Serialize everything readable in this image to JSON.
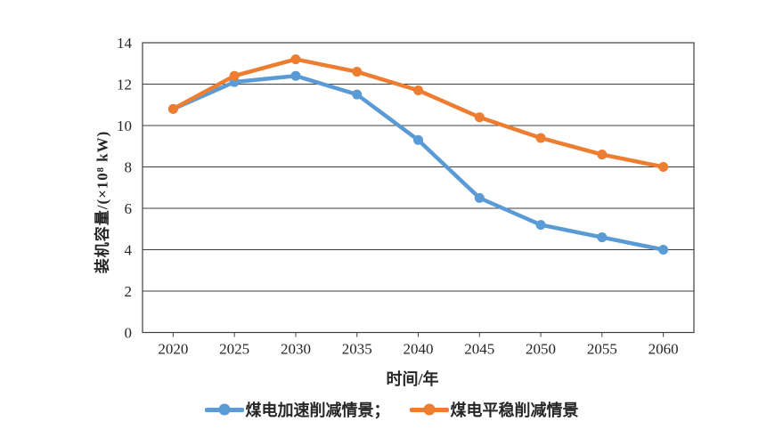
{
  "chart_data": {
    "type": "line",
    "title": "",
    "categories": [
      "2020",
      "2025",
      "2030",
      "2035",
      "2040",
      "2045",
      "2050",
      "2055",
      "2060"
    ],
    "series": [
      {
        "name": "煤电加速削减情景",
        "legend_label": "煤电加速削减情景；",
        "color": "#5B9BD5",
        "values": [
          10.8,
          12.1,
          12.4,
          11.5,
          9.3,
          6.5,
          5.2,
          4.6,
          4.0
        ]
      },
      {
        "name": "煤电平稳削减情景",
        "legend_label": "煤电平稳削减情景",
        "color": "#ED7D31",
        "values": [
          10.8,
          12.4,
          13.2,
          12.6,
          11.7,
          10.4,
          9.4,
          8.6,
          8.0
        ]
      }
    ],
    "xlabel": "时间/年",
    "ylabel": "装机容量/(×10⁸ kW)",
    "ylim": [
      0,
      14
    ],
    "ytick_step": 2,
    "grid": "horizontal",
    "legend_position": "bottom",
    "axis_color": "#3f3f3f"
  }
}
